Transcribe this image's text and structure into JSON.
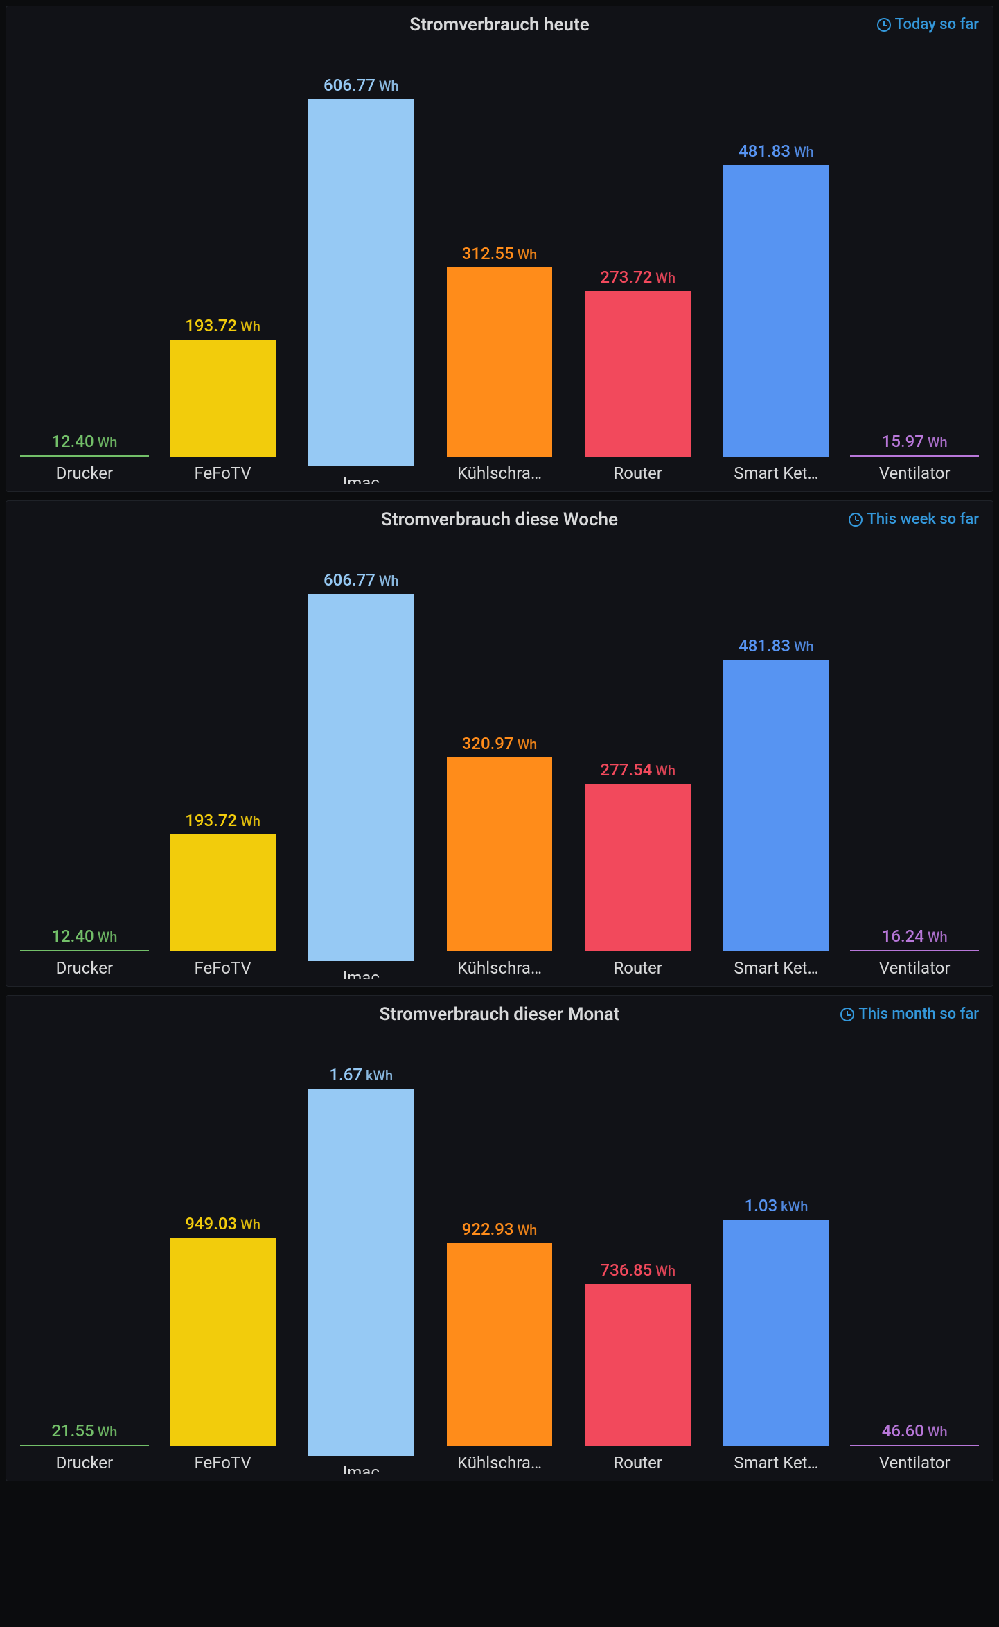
{
  "background_color": "#0b0c0e",
  "panel_background": "#111217",
  "panel_border": "#1f2228",
  "title_color": "#d8d9da",
  "time_range_color": "#3498db",
  "category_label_color": "#d8d9da",
  "title_fontsize": 26,
  "value_fontsize": 24,
  "unit_fontsize": 20,
  "category_fontsize": 24,
  "panels": [
    {
      "title": "Stromverbrauch heute",
      "time_range": "Today so far",
      "type": "bar",
      "max_value": 606.77,
      "bars": [
        {
          "name": "Drucker",
          "value": 12.4,
          "unit": "Wh",
          "color": "#73bf69",
          "label": "Drucker"
        },
        {
          "name": "FeFoTV",
          "value": 193.72,
          "unit": "Wh",
          "color": "#f2cc0c",
          "label": "FeFoTV"
        },
        {
          "name": "Imac",
          "value": 606.77,
          "unit": "Wh",
          "color": "#96c9f4",
          "label": "Imac"
        },
        {
          "name": "Kühlschrank",
          "value": 312.55,
          "unit": "Wh",
          "color": "#ff8c1a",
          "label": "Kühlschra…"
        },
        {
          "name": "Router",
          "value": 273.72,
          "unit": "Wh",
          "color": "#f2495c",
          "label": "Router"
        },
        {
          "name": "Smart Kettle",
          "value": 481.83,
          "unit": "Wh",
          "color": "#5794f2",
          "label": "Smart Ket…"
        },
        {
          "name": "Ventilator",
          "value": 15.97,
          "unit": "Wh",
          "color": "#b877d9",
          "label": "Ventilator"
        }
      ]
    },
    {
      "title": "Stromverbrauch diese Woche",
      "time_range": "This week so far",
      "type": "bar",
      "max_value": 606.77,
      "bars": [
        {
          "name": "Drucker",
          "value": 12.4,
          "unit": "Wh",
          "color": "#73bf69",
          "label": "Drucker"
        },
        {
          "name": "FeFoTV",
          "value": 193.72,
          "unit": "Wh",
          "color": "#f2cc0c",
          "label": "FeFoTV"
        },
        {
          "name": "Imac",
          "value": 606.77,
          "unit": "Wh",
          "color": "#96c9f4",
          "label": "Imac"
        },
        {
          "name": "Kühlschrank",
          "value": 320.97,
          "unit": "Wh",
          "color": "#ff8c1a",
          "label": "Kühlschra…"
        },
        {
          "name": "Router",
          "value": 277.54,
          "unit": "Wh",
          "color": "#f2495c",
          "label": "Router"
        },
        {
          "name": "Smart Kettle",
          "value": 481.83,
          "unit": "Wh",
          "color": "#5794f2",
          "label": "Smart Ket…"
        },
        {
          "name": "Ventilator",
          "value": 16.24,
          "unit": "Wh",
          "color": "#b877d9",
          "label": "Ventilator"
        }
      ]
    },
    {
      "title": "Stromverbrauch dieser Monat",
      "time_range": "This month so far",
      "type": "bar",
      "max_value": 1670,
      "bars": [
        {
          "name": "Drucker",
          "value": 21.55,
          "unit": "Wh",
          "color": "#73bf69",
          "label": "Drucker",
          "display_value": "21.55"
        },
        {
          "name": "FeFoTV",
          "value": 949.03,
          "unit": "Wh",
          "color": "#f2cc0c",
          "label": "FeFoTV",
          "display_value": "949.03"
        },
        {
          "name": "Imac",
          "value": 1670,
          "unit": "kWh",
          "color": "#96c9f4",
          "label": "Imac",
          "display_value": "1.67"
        },
        {
          "name": "Kühlschrank",
          "value": 922.93,
          "unit": "Wh",
          "color": "#ff8c1a",
          "label": "Kühlschra…",
          "display_value": "922.93"
        },
        {
          "name": "Router",
          "value": 736.85,
          "unit": "Wh",
          "color": "#f2495c",
          "label": "Router",
          "display_value": "736.85"
        },
        {
          "name": "Smart Kettle",
          "value": 1030,
          "unit": "kWh",
          "color": "#5794f2",
          "label": "Smart Ket…",
          "display_value": "1.03"
        },
        {
          "name": "Ventilator",
          "value": 46.6,
          "unit": "Wh",
          "color": "#b877d9",
          "label": "Ventilator",
          "display_value": "46.60"
        }
      ]
    }
  ]
}
